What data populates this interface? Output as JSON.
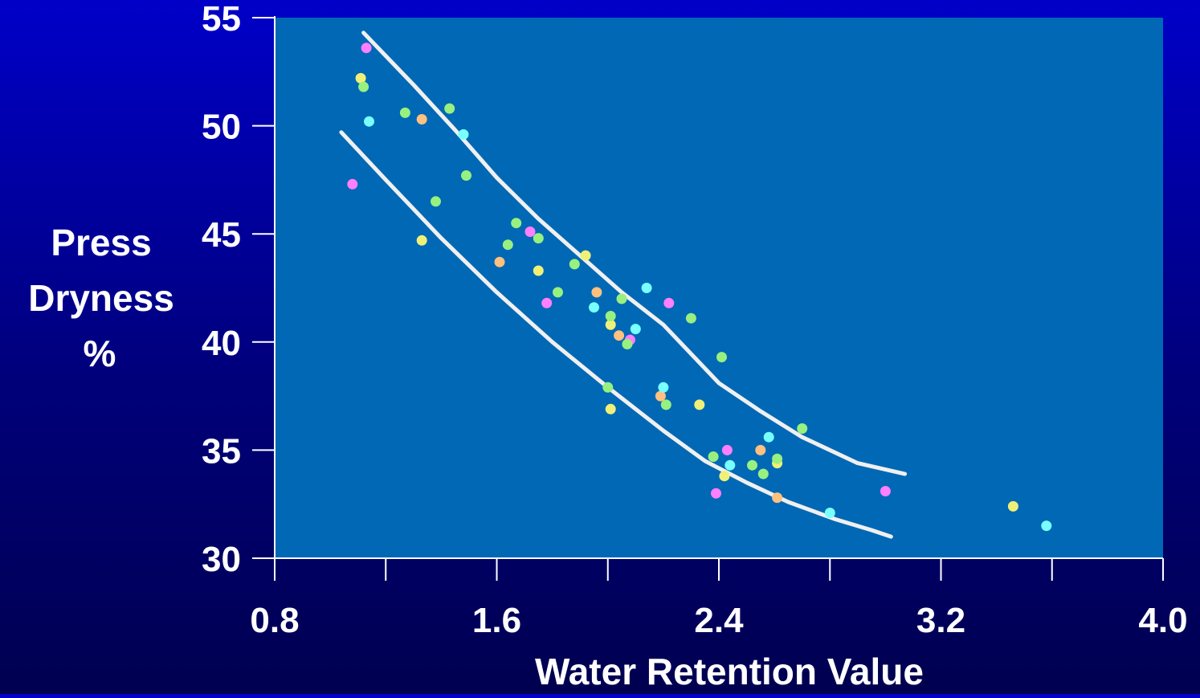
{
  "chart_data": {
    "type": "scatter",
    "title": "",
    "xlabel": "Water Retention Value",
    "ylabel_lines": [
      "Press",
      "Dryness",
      "%"
    ],
    "xlim": [
      0.8,
      4.0
    ],
    "ylim": [
      30,
      55
    ],
    "x_ticks": [
      0.8,
      1.2,
      1.6,
      2.0,
      2.4,
      2.8,
      3.2,
      3.6,
      4.0
    ],
    "x_tick_labels": [
      "0.8",
      "1.6",
      "2.4",
      "3.2",
      "4.0"
    ],
    "x_tick_label_values": [
      0.8,
      1.6,
      2.4,
      3.2,
      4.0
    ],
    "y_ticks": [
      30,
      35,
      40,
      45,
      50,
      55
    ],
    "y_tick_labels": [
      "30",
      "35",
      "40",
      "45",
      "50",
      "55"
    ],
    "grid": false,
    "colors": {
      "plot_bg": "#0068b4",
      "axis": "#ffffff",
      "curve": "#f0f0f0",
      "text": "#ffffff"
    },
    "series": [
      {
        "color": "#ff7fff",
        "points": [
          [
            1.13,
            53.6
          ],
          [
            1.08,
            47.3
          ],
          [
            1.72,
            45.1
          ],
          [
            1.78,
            41.8
          ],
          [
            2.08,
            40.1
          ],
          [
            2.22,
            41.8
          ],
          [
            2.43,
            35.0
          ],
          [
            2.39,
            33.0
          ],
          [
            3.0,
            33.1
          ]
        ]
      },
      {
        "color": "#f0f078",
        "points": [
          [
            1.11,
            52.2
          ],
          [
            1.33,
            44.7
          ],
          [
            1.75,
            43.3
          ],
          [
            1.92,
            44.0
          ],
          [
            2.01,
            40.8
          ],
          [
            2.01,
            36.9
          ],
          [
            2.33,
            37.1
          ],
          [
            2.42,
            33.8
          ],
          [
            2.61,
            34.4
          ],
          [
            3.46,
            32.4
          ]
        ]
      },
      {
        "color": "#98f080",
        "points": [
          [
            1.12,
            51.8
          ],
          [
            1.27,
            50.6
          ],
          [
            1.43,
            50.8
          ],
          [
            1.49,
            47.7
          ],
          [
            1.38,
            46.5
          ],
          [
            1.67,
            45.5
          ],
          [
            1.64,
            44.5
          ],
          [
            1.75,
            44.8
          ],
          [
            1.82,
            42.3
          ],
          [
            1.88,
            43.6
          ],
          [
            2.05,
            42.0
          ],
          [
            2.01,
            41.2
          ],
          [
            2.07,
            39.9
          ],
          [
            2.3,
            41.1
          ],
          [
            2.41,
            39.3
          ],
          [
            2.0,
            37.9
          ],
          [
            2.21,
            37.1
          ],
          [
            2.38,
            34.7
          ],
          [
            2.52,
            34.3
          ],
          [
            2.56,
            33.9
          ],
          [
            2.61,
            34.6
          ],
          [
            2.7,
            36.0
          ]
        ]
      },
      {
        "color": "#ffc080",
        "points": [
          [
            1.33,
            50.3
          ],
          [
            1.61,
            43.7
          ],
          [
            1.96,
            42.3
          ],
          [
            2.04,
            40.3
          ],
          [
            2.19,
            37.5
          ],
          [
            2.55,
            35.0
          ],
          [
            2.61,
            32.8
          ]
        ]
      },
      {
        "color": "#78ffff",
        "points": [
          [
            1.14,
            50.2
          ],
          [
            1.48,
            49.6
          ],
          [
            1.95,
            41.6
          ],
          [
            2.1,
            40.6
          ],
          [
            2.14,
            42.5
          ],
          [
            2.2,
            37.9
          ],
          [
            2.44,
            34.3
          ],
          [
            2.58,
            35.6
          ],
          [
            2.8,
            32.1
          ],
          [
            3.58,
            31.5
          ]
        ]
      }
    ],
    "curves": [
      {
        "name": "",
        "points": [
          [
            1.12,
            54.3
          ],
          [
            1.3,
            51.9
          ],
          [
            1.45,
            49.8
          ],
          [
            1.6,
            47.6
          ],
          [
            1.75,
            45.7
          ],
          [
            1.9,
            44.0
          ],
          [
            2.05,
            42.3
          ],
          [
            2.2,
            40.8
          ],
          [
            2.4,
            38.1
          ],
          [
            2.55,
            36.8
          ],
          [
            2.7,
            35.6
          ],
          [
            2.9,
            34.4
          ],
          [
            3.07,
            33.9
          ]
        ]
      },
      {
        "name": "",
        "points": [
          [
            1.04,
            49.7
          ],
          [
            1.2,
            47.5
          ],
          [
            1.4,
            44.8
          ],
          [
            1.6,
            42.3
          ],
          [
            1.8,
            40.0
          ],
          [
            2.0,
            37.9
          ],
          [
            2.2,
            35.9
          ],
          [
            2.35,
            34.5
          ],
          [
            2.5,
            33.5
          ],
          [
            2.65,
            32.6
          ],
          [
            2.82,
            31.8
          ],
          [
            2.95,
            31.3
          ],
          [
            3.02,
            31.0
          ]
        ]
      }
    ]
  }
}
